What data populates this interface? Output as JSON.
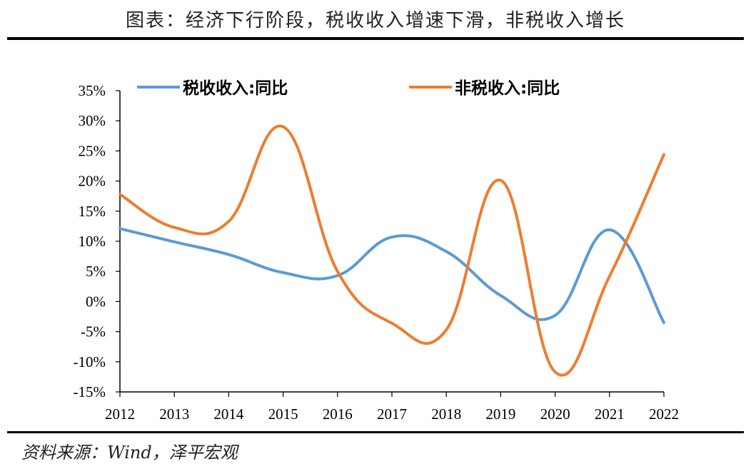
{
  "title": "图表：经济下行阶段，税收收入增速下滑，非税收入增长",
  "source": "资料来源：Wind，泽平宏观",
  "colors": {
    "tax": "#5b9bd5",
    "nontax": "#ed7d31",
    "axis": "#000000"
  },
  "chart_data": {
    "type": "line",
    "x": [
      "2012",
      "2013",
      "2014",
      "2015",
      "2016",
      "2017",
      "2018",
      "2019",
      "2020",
      "2021",
      "2022"
    ],
    "ylim": [
      -15,
      35
    ],
    "yticks": [
      "35%",
      "30%",
      "25%",
      "20%",
      "15%",
      "10%",
      "5%",
      "0%",
      "-5%",
      "-10%",
      "-15%"
    ],
    "legend_position": "top",
    "series": [
      {
        "name": "税收收入:同比",
        "values": [
          12.1,
          9.9,
          7.8,
          4.8,
          4.3,
          10.7,
          8.3,
          1.0,
          -2.3,
          11.9,
          -3.5
        ]
      },
      {
        "name": "非税收入:同比",
        "values": [
          17.8,
          12.3,
          13.3,
          29.0,
          5.0,
          -3.6,
          -4.7,
          20.1,
          -11.7,
          4.2,
          24.4
        ]
      }
    ]
  }
}
